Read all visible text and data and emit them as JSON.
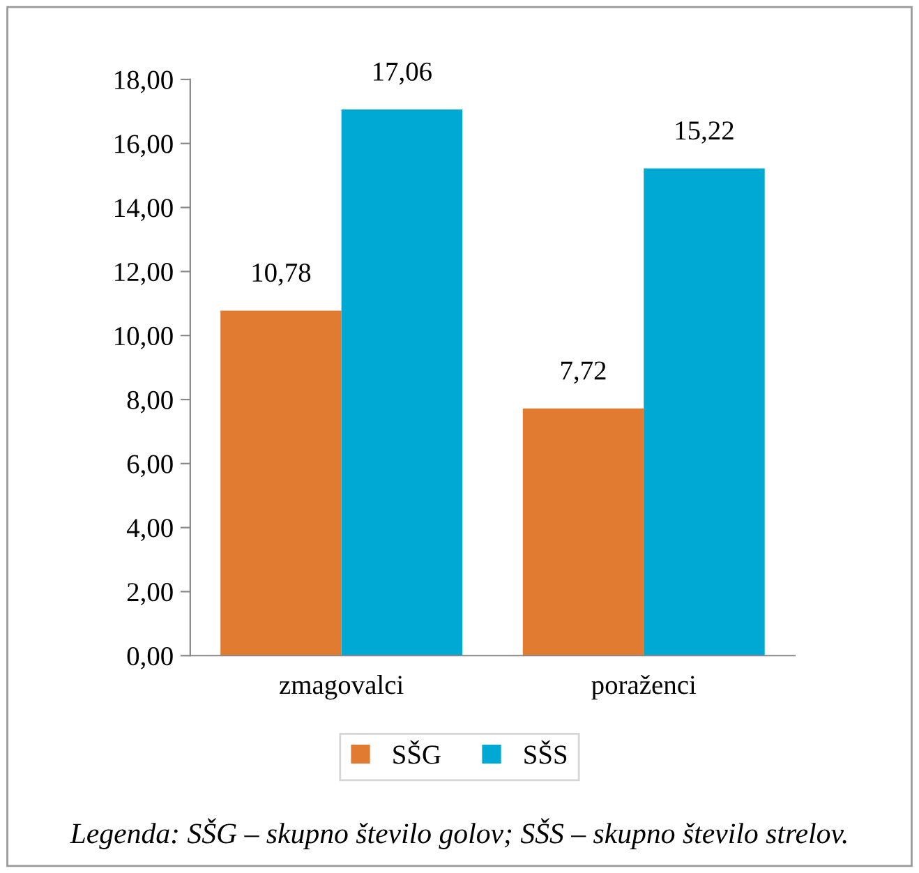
{
  "chart_data": {
    "type": "bar",
    "categories": [
      "zmagovalci",
      "poraženci"
    ],
    "series": [
      {
        "name": "SŠG",
        "color": "#e07b31",
        "values": [
          10.78,
          7.72
        ],
        "value_labels": [
          "10,78",
          "7,72"
        ]
      },
      {
        "name": "SŠS",
        "color": "#00a8d4",
        "values": [
          17.06,
          15.22
        ],
        "value_labels": [
          "17,06",
          "15,22"
        ]
      }
    ],
    "ylim": [
      0,
      18
    ],
    "yticks": [
      {
        "value": 0,
        "label": "0,00"
      },
      {
        "value": 2,
        "label": "2,00"
      },
      {
        "value": 4,
        "label": "4,00"
      },
      {
        "value": 6,
        "label": "6,00"
      },
      {
        "value": 8,
        "label": "8,00"
      },
      {
        "value": 10,
        "label": "10,00"
      },
      {
        "value": 12,
        "label": "12,00"
      },
      {
        "value": 14,
        "label": "14,00"
      },
      {
        "value": 16,
        "label": "16,00"
      },
      {
        "value": 18,
        "label": "18,00"
      }
    ],
    "grid": false,
    "legend": "bottom",
    "annotations": [
      "Legenda: SŠG – skupno število golov; SŠS – skupno število strelov."
    ]
  }
}
